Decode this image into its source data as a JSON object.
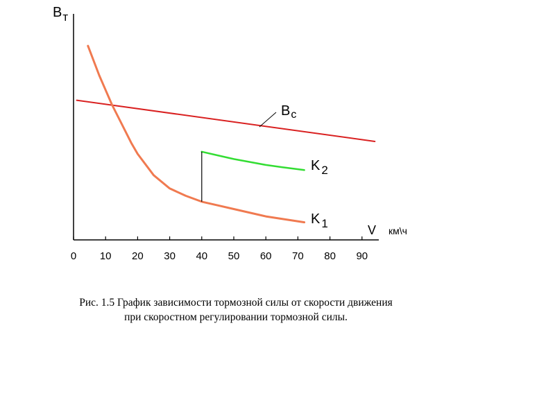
{
  "chart_data": {
    "type": "line",
    "title": "",
    "ylabel_main": "B",
    "ylabel_sub": "т",
    "xlabel": "V",
    "xunit": "км\\ч",
    "xlim": [
      0,
      95
    ],
    "x_ticks": [
      "0",
      "10",
      "20",
      "30",
      "40",
      "50",
      "60",
      "70",
      "80",
      "90"
    ],
    "grid": false,
    "series": [
      {
        "name_main": "B",
        "name_sub": "c",
        "color": "#d92020",
        "x": [
          1,
          94
        ],
        "y": [
          0.95,
          0.67
        ]
      },
      {
        "name_main": "K",
        "name_sub": "1",
        "color": "#f07a50",
        "x": [
          4.5,
          8,
          10,
          12,
          15,
          18,
          20,
          25,
          30,
          35,
          40,
          45,
          50,
          60,
          72
        ],
        "y": [
          1.32,
          1.12,
          1.02,
          0.92,
          0.79,
          0.66,
          0.585,
          0.44,
          0.35,
          0.3,
          0.26,
          0.235,
          0.21,
          0.16,
          0.12
        ]
      },
      {
        "name_main": "K",
        "name_sub": "2",
        "color": "#33dd33",
        "x": [
          40,
          45,
          50,
          55,
          60,
          65,
          72
        ],
        "y": [
          0.6,
          0.575,
          0.55,
          0.53,
          0.51,
          0.495,
          0.475
        ]
      }
    ],
    "transition": {
      "x": 40,
      "y_from": 0.26,
      "y_to": 0.6,
      "color": "#000000"
    }
  },
  "caption": {
    "line1": "Рис. 1.5  График зависимости тормозной силы от скорости движения",
    "line2": "при скоростном регулировании тормозной силы."
  }
}
